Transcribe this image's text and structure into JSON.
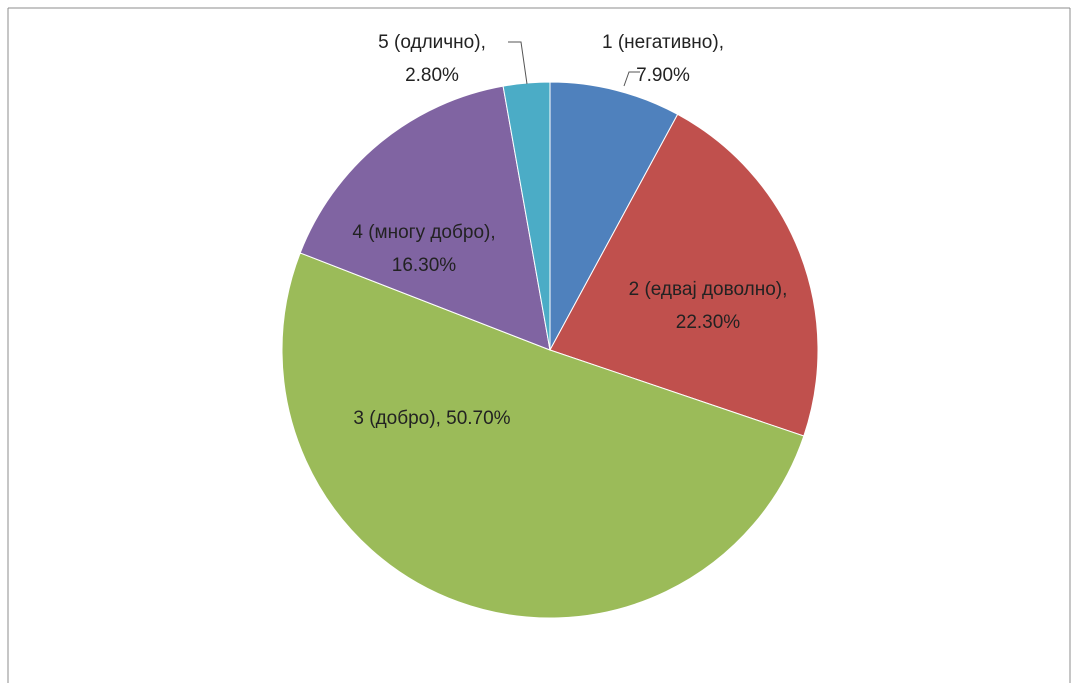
{
  "chart_data": {
    "type": "pie",
    "categories": [
      "1 (негативно)",
      "2 (едвај доволно)",
      "3 (добро)",
      "4 (многу добро)",
      "5 (одлично)"
    ],
    "values": [
      7.9,
      22.3,
      50.7,
      16.3,
      2.8
    ],
    "value_labels": [
      "7.90%",
      "22.30%",
      "50.70%",
      "16.30%",
      "2.80%"
    ],
    "label_separator": ", ",
    "colors": [
      "#4f81bd",
      "#c0504d",
      "#9bbb59",
      "#8064a2",
      "#4bacc6"
    ]
  }
}
